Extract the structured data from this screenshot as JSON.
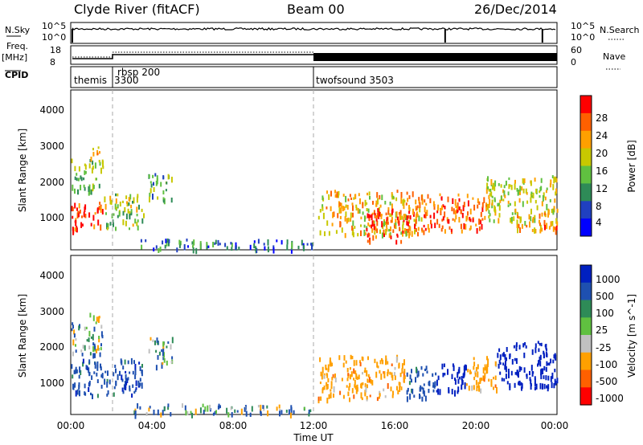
{
  "header": {
    "station": "Clyde River (fitACF)",
    "beam": "Beam 00",
    "date": "26/Dec/2014"
  },
  "strips": {
    "nsky_label": "N.Sky",
    "nsky_ticks": [
      "10^5",
      "10^0"
    ],
    "nsearch_label": "N.Search",
    "nsearch_ticks": [
      "10^5",
      "10^0"
    ],
    "freq_label_1": "Freq.",
    "freq_label_2": "[MHz]",
    "freq_ticks": [
      "18",
      "8"
    ],
    "nave_label": "Nave",
    "nave_ticks": [
      "60",
      "0"
    ],
    "cpid_label": "CPID",
    "cpid_segments": [
      {
        "label": "themis",
        "start_hour": 0.0
      },
      {
        "label": "3300",
        "start_hour": 1.75
      },
      {
        "label": "rbsp 200",
        "start_hour": 1.75
      },
      {
        "label": "twofsound 3503",
        "start_hour": 12.0
      }
    ],
    "mode_changes_hours": [
      1.75,
      12.0
    ]
  },
  "power_panel": {
    "ylabel": "Slant Range [km]",
    "yticks": [
      "4000",
      "3000",
      "2000",
      "1000"
    ],
    "colorbar_label": "Power [dB]",
    "colorbar_ticks": [
      "28",
      "24",
      "20",
      "16",
      "12",
      "8",
      "4"
    ],
    "colors": [
      "#0000ff",
      "#2040c0",
      "#2e8b57",
      "#60c040",
      "#c8c800",
      "#ffa000",
      "#ff6000",
      "#ff0000"
    ]
  },
  "velocity_panel": {
    "ylabel": "Slant Range [km]",
    "yticks": [
      "4000",
      "3000",
      "2000",
      "1000"
    ],
    "colorbar_label": "Velocity [m s^-1]",
    "colorbar_ticks": [
      "1000",
      "500",
      "100",
      "25",
      "-25",
      "-100",
      "-500",
      "-1000"
    ],
    "colors": [
      "#0020c0",
      "#1e50b0",
      "#2e8b57",
      "#60c040",
      "#c0c0c0",
      "#ffa000",
      "#ff6000",
      "#ff0000"
    ]
  },
  "x_axis": {
    "ticks": [
      "00:00",
      "04:00",
      "08:00",
      "12:00",
      "16:00",
      "20:00",
      "00:00"
    ],
    "label": "Time UT"
  },
  "chart_data": [
    {
      "type": "heatmap",
      "title": "Power [dB]",
      "xlabel": "Time UT",
      "ylabel": "Slant Range [km]",
      "xlim_hours": [
        0,
        24
      ],
      "ylim": [
        180,
        4600
      ],
      "zlim": [
        0,
        30
      ],
      "regions": [
        {
          "t0": 0.0,
          "t1": 1.6,
          "r0": 700,
          "r1": 1500,
          "level": 28
        },
        {
          "t0": 1.6,
          "t1": 3.6,
          "r0": 700,
          "r1": 1700,
          "level": 16
        },
        {
          "t0": 0.0,
          "t1": 1.6,
          "r0": 1800,
          "r1": 2700,
          "level": 14
        },
        {
          "t0": 0.8,
          "t1": 1.6,
          "r0": 2700,
          "r1": 3000,
          "level": 22
        },
        {
          "t0": 3.8,
          "t1": 5.0,
          "r0": 1500,
          "r1": 2300,
          "level": 12
        },
        {
          "t0": 12.2,
          "t1": 17.5,
          "r0": 600,
          "r1": 1800,
          "level": 20
        },
        {
          "t0": 14.5,
          "t1": 17.0,
          "r0": 400,
          "r1": 1300,
          "level": 28
        },
        {
          "t0": 17.0,
          "t1": 20.5,
          "r0": 700,
          "r1": 1700,
          "level": 26
        },
        {
          "t0": 20.5,
          "t1": 24.0,
          "r0": 900,
          "r1": 2200,
          "level": 18
        },
        {
          "t0": 22.0,
          "t1": 24.0,
          "r0": 700,
          "r1": 1200,
          "level": 24
        },
        {
          "t0": 3.0,
          "t1": 12.0,
          "r0": 180,
          "r1": 450,
          "level": 8
        }
      ]
    },
    {
      "type": "heatmap",
      "title": "Velocity [m s^-1]",
      "xlabel": "Time UT",
      "ylabel": "Slant Range [km]",
      "xlim_hours": [
        0,
        24
      ],
      "ylim": [
        180,
        4600
      ],
      "zlim": [
        -1000,
        1000
      ],
      "regions": [
        {
          "t0": 0.0,
          "t1": 3.6,
          "r0": 700,
          "r1": 1700,
          "level": 300
        },
        {
          "t0": 0.0,
          "t1": 1.6,
          "r0": 1800,
          "r1": 2700,
          "level": 50
        },
        {
          "t0": 0.8,
          "t1": 1.6,
          "r0": 2700,
          "r1": 3000,
          "level": -200
        },
        {
          "t0": 3.8,
          "t1": 5.0,
          "r0": 1500,
          "r1": 2300,
          "level": 50
        },
        {
          "t0": 12.2,
          "t1": 16.5,
          "r0": 600,
          "r1": 1800,
          "level": -300
        },
        {
          "t0": 16.5,
          "t1": 18.0,
          "r0": 600,
          "r1": 1500,
          "level": 300
        },
        {
          "t0": 18.0,
          "t1": 19.5,
          "r0": 700,
          "r1": 1600,
          "level": 800
        },
        {
          "t0": 19.5,
          "t1": 21.0,
          "r0": 800,
          "r1": 1800,
          "level": -300
        },
        {
          "t0": 21.0,
          "t1": 24.0,
          "r0": 900,
          "r1": 2200,
          "level": 800
        },
        {
          "t0": 3.0,
          "t1": 12.0,
          "r0": 180,
          "r1": 450,
          "level": 100
        }
      ]
    }
  ]
}
